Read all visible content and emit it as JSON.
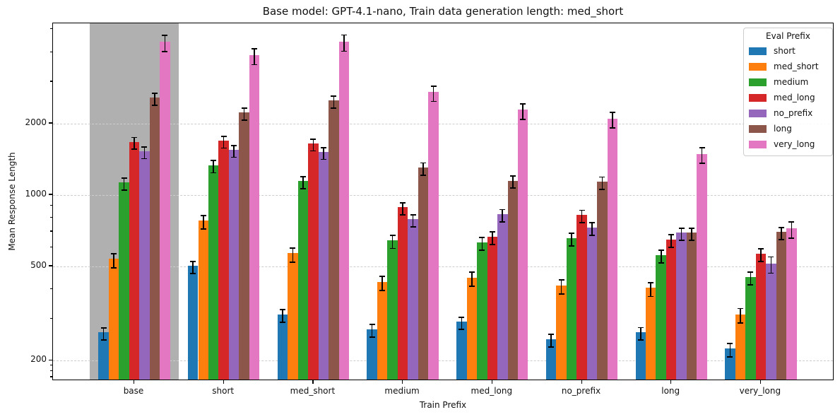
{
  "title": "Base model: GPT-4.1-nano, Train data generation length: med_short",
  "chart_data": {
    "type": "bar",
    "title": "Base model: GPT-4.1-nano, Train data generation length: med_short",
    "xlabel": "Train Prefix",
    "ylabel": "Mean Response Length",
    "y_scale": "log",
    "ylim": [
      164,
      5310
    ],
    "grid": "horizontal-dashed",
    "legend_title": "Eval Prefix",
    "legend_position": "upper right",
    "highlight_category": "base",
    "highlight_color": "rgba(128,128,128,0.62)",
    "categories": [
      "base",
      "short",
      "med_short",
      "medium",
      "med_long",
      "no_prefix",
      "long",
      "very_long"
    ],
    "y_ticks": [
      200,
      500,
      1000,
      2000
    ],
    "y_minor_ticks": [
      170,
      180,
      190,
      300,
      400,
      600,
      700,
      800,
      900,
      3000,
      4000,
      5000
    ],
    "series": [
      {
        "name": "short",
        "color": "#1f77b4",
        "values": [
          260,
          495,
          310,
          268,
          288,
          243,
          260,
          222
        ],
        "errors": [
          15,
          28,
          19,
          16,
          17,
          15,
          16,
          14
        ]
      },
      {
        "name": "med_short",
        "color": "#ff7f0e",
        "values": [
          530,
          770,
          560,
          425,
          443,
          410,
          400,
          310
        ],
        "errors": [
          36,
          50,
          38,
          29,
          30,
          28,
          27,
          22
        ]
      },
      {
        "name": "medium",
        "color": "#2ca02c",
        "values": [
          1115,
          1320,
          1130,
          635,
          623,
          650,
          550,
          445
        ],
        "errors": [
          66,
          78,
          66,
          40,
          38,
          40,
          34,
          27
        ]
      },
      {
        "name": "med_long",
        "color": "#d62728",
        "values": [
          1655,
          1675,
          1630,
          875,
          660,
          815,
          640,
          558
        ],
        "errors": [
          95,
          97,
          94,
          52,
          41,
          48,
          39,
          34
        ]
      },
      {
        "name": "no_prefix",
        "color": "#9467bd",
        "values": [
          1510,
          1530,
          1500,
          780,
          820,
          720,
          685,
          508
        ],
        "errors": [
          86,
          86,
          85,
          47,
          49,
          44,
          41,
          40
        ]
      },
      {
        "name": "long",
        "color": "#8c564b",
        "values": [
          2540,
          2200,
          2470,
          1290,
          1135,
          1125,
          685,
          690
        ],
        "errors": [
          145,
          126,
          141,
          76,
          66,
          66,
          41,
          41
        ]
      },
      {
        "name": "very_long",
        "color": "#e377c2",
        "values": [
          4375,
          3850,
          4390,
          2685,
          2260,
          2075,
          1470,
          714
        ],
        "errors": [
          350,
          300,
          345,
          200,
          170,
          155,
          110,
          56
        ]
      }
    ]
  }
}
